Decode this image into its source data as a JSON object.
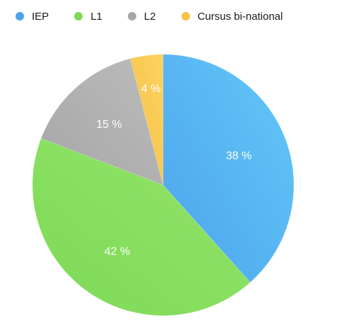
{
  "chart_data": {
    "type": "pie",
    "legend_position": "top",
    "slices": [
      {
        "name": "IEP",
        "value": 38,
        "label": "38 %",
        "color": "#4da3ec",
        "color_light": "#63c9f8"
      },
      {
        "name": "L1",
        "value": 42,
        "label": "42 %",
        "color": "#7ed957",
        "color_light": "#93e56a"
      },
      {
        "name": "L2",
        "value": 15,
        "label": "15 %",
        "color": "#a6a6a6",
        "color_light": "#bcbcbc"
      },
      {
        "name": "Cursus bi-national",
        "value": 4,
        "label": "4 %",
        "color": "#f6c244",
        "color_light": "#fbd262"
      }
    ]
  }
}
